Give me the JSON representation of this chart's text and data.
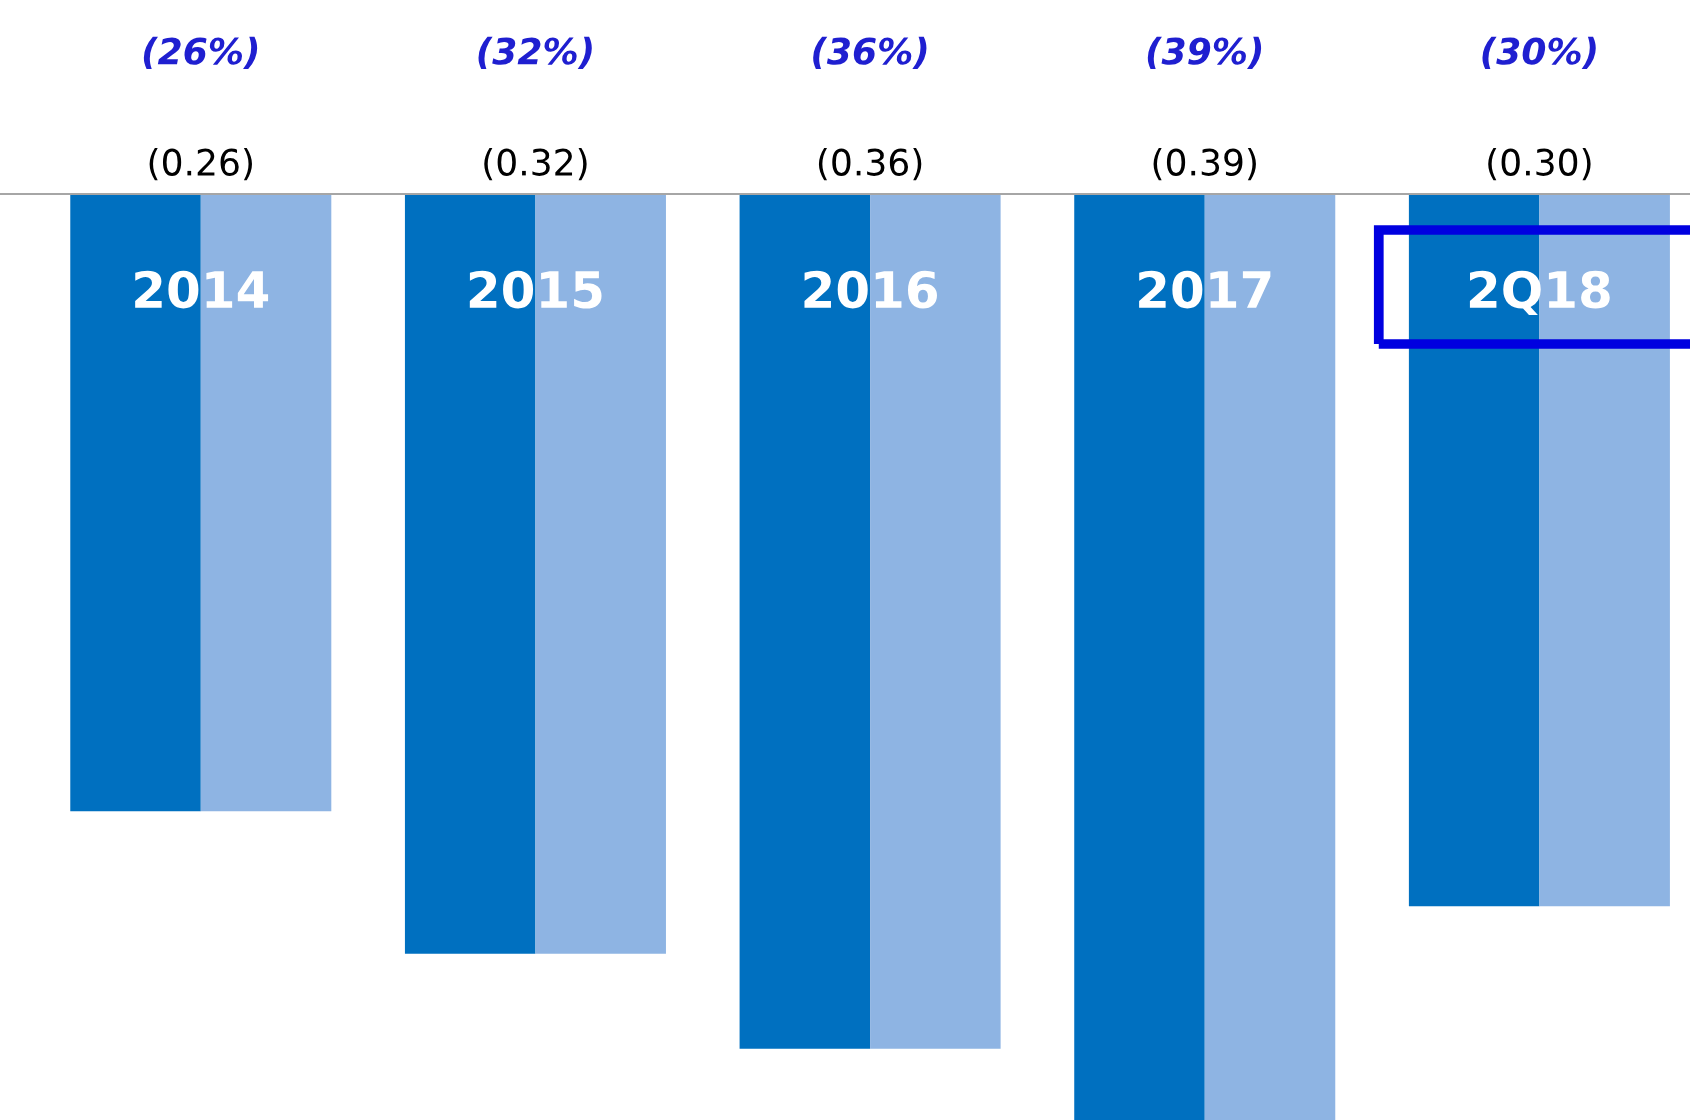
{
  "chart_data": {
    "type": "bar",
    "categories": [
      "2014",
      "2015",
      "2016",
      "2017",
      "2Q18"
    ],
    "series": [
      {
        "color": "#0070c0",
        "values": [
          -0.26,
          -0.32,
          -0.36,
          -0.39,
          -0.3
        ],
        "value_labels": [
          "(0.26)",
          "(0.32)",
          "(0.36)",
          "(0.39)",
          "(0.30)"
        ]
      },
      {
        "color": "#8eb4e3",
        "axis": "y2",
        "values": [
          -26,
          -32,
          -36,
          -39,
          -30
        ],
        "value_labels": [
          "(26%)",
          "(32%)",
          "(36%)",
          "(39%)",
          "(30%)"
        ]
      }
    ]
  }
}
